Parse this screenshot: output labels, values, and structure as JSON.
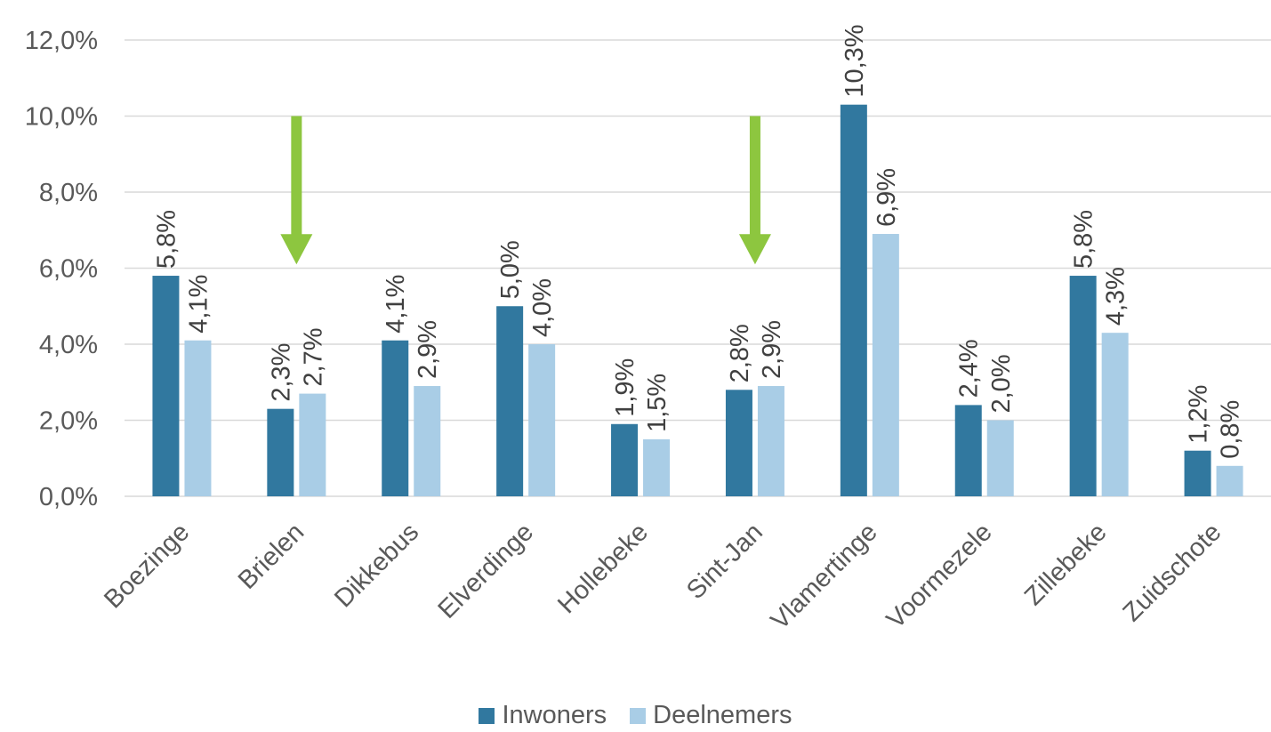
{
  "chart_data": {
    "type": "bar",
    "categories": [
      "Boezinge",
      "Brielen",
      "Dikkebus",
      "Elverdinge",
      "Hollebeke",
      "Sint-Jan",
      "Vlamertinge",
      "Voormezele",
      "Zillebeke",
      "Zuidschote"
    ],
    "series": [
      {
        "name": "Inwoners",
        "color": "#31789f",
        "values": [
          5.8,
          2.3,
          4.1,
          5.0,
          1.9,
          2.8,
          10.3,
          2.4,
          5.8,
          1.2
        ],
        "labels": [
          "5,8%",
          "2,3%",
          "4,1%",
          "5,0%",
          "1,9%",
          "2,8%",
          "10,3%",
          "2,4%",
          "5,8%",
          "1,2%"
        ]
      },
      {
        "name": "Deelnemers",
        "color": "#a9cde6",
        "values": [
          4.1,
          2.7,
          2.9,
          4.0,
          1.5,
          2.9,
          6.9,
          2.0,
          4.3,
          0.8
        ],
        "labels": [
          "4,1%",
          "2,7%",
          "2,9%",
          "4,0%",
          "1,5%",
          "2,9%",
          "6,9%",
          "2,0%",
          "4,3%",
          "0,8%"
        ]
      }
    ],
    "ylim": [
      0,
      12
    ],
    "yticks": [
      {
        "value": 0,
        "label": "0,0%"
      },
      {
        "value": 2,
        "label": "2,0%"
      },
      {
        "value": 4,
        "label": "4,0%"
      },
      {
        "value": 6,
        "label": "6,0%"
      },
      {
        "value": 8,
        "label": "8,0%"
      },
      {
        "value": 10,
        "label": "10,0%"
      },
      {
        "value": 12,
        "label": "12,0%"
      }
    ],
    "grid": true,
    "legend_position": "bottom",
    "annotations": [
      {
        "type": "arrow",
        "category": "Brielen",
        "from_value": 10,
        "to_value": 6.1,
        "color": "#8dc63f"
      },
      {
        "type": "arrow",
        "category": "Sint-Jan",
        "from_value": 10,
        "to_value": 6.1,
        "color": "#8dc63f"
      }
    ]
  },
  "legend": {
    "items": [
      {
        "label": "Inwoners",
        "color": "#31789f"
      },
      {
        "label": "Deelnemers",
        "color": "#a9cde6"
      }
    ]
  }
}
